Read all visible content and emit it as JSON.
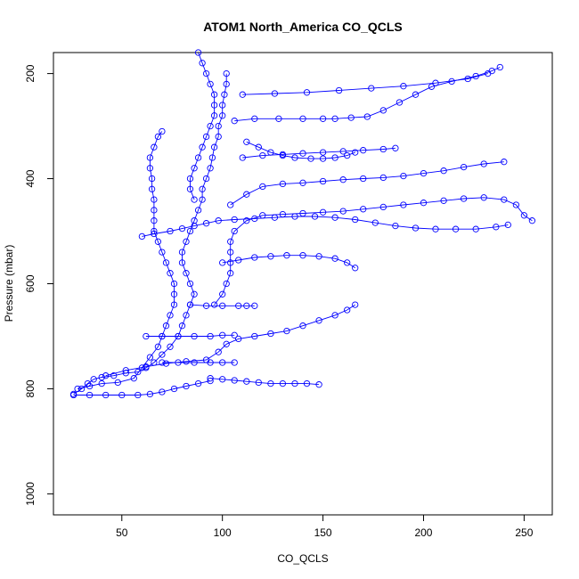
{
  "chart_data": {
    "type": "scatter",
    "title": "ATOM1 North_America CO_QCLS",
    "xlabel": "CO_QCLS",
    "ylabel": "Pressure (mbar)",
    "xlim": [
      16,
      264
    ],
    "ylim": [
      1040,
      160
    ],
    "y_reversed": true,
    "x_ticks": [
      50,
      100,
      150,
      200,
      250
    ],
    "y_ticks": [
      200,
      400,
      600,
      800,
      1000
    ],
    "grid": false,
    "legend": "none",
    "color": "#0000ff",
    "marker": "open-circle",
    "connect_points": true,
    "series": [
      {
        "values": [
          [
            26,
            810
          ],
          [
            30,
            800
          ],
          [
            33,
            790
          ],
          [
            36,
            782
          ],
          [
            40,
            778
          ],
          [
            46,
            775
          ],
          [
            52,
            770
          ],
          [
            58,
            768
          ],
          [
            62,
            760
          ],
          [
            66,
            750
          ],
          [
            70,
            735
          ],
          [
            74,
            720
          ],
          [
            78,
            700
          ],
          [
            80,
            680
          ],
          [
            82,
            660
          ],
          [
            84,
            640
          ],
          [
            86,
            620
          ],
          [
            84,
            600
          ],
          [
            82,
            580
          ],
          [
            80,
            560
          ],
          [
            80,
            540
          ],
          [
            82,
            520
          ],
          [
            84,
            500
          ],
          [
            86,
            480
          ],
          [
            88,
            460
          ],
          [
            90,
            440
          ],
          [
            90,
            420
          ],
          [
            92,
            400
          ],
          [
            94,
            380
          ],
          [
            95,
            360
          ],
          [
            96,
            340
          ],
          [
            98,
            320
          ],
          [
            98,
            300
          ],
          [
            100,
            280
          ],
          [
            100,
            260
          ],
          [
            101,
            240
          ],
          [
            102,
            220
          ],
          [
            102,
            200
          ]
        ]
      },
      {
        "values": [
          [
            28,
            800
          ],
          [
            34,
            795
          ],
          [
            40,
            790
          ],
          [
            48,
            788
          ],
          [
            56,
            780
          ],
          [
            60,
            760
          ],
          [
            64,
            740
          ],
          [
            68,
            720
          ],
          [
            70,
            700
          ],
          [
            72,
            680
          ],
          [
            74,
            660
          ],
          [
            76,
            640
          ],
          [
            76,
            620
          ],
          [
            76,
            600
          ],
          [
            74,
            580
          ],
          [
            72,
            560
          ],
          [
            70,
            540
          ],
          [
            68,
            520
          ],
          [
            66,
            500
          ],
          [
            66,
            480
          ],
          [
            66,
            460
          ],
          [
            66,
            440
          ],
          [
            65,
            420
          ],
          [
            65,
            400
          ],
          [
            64,
            380
          ],
          [
            64,
            360
          ],
          [
            66,
            340
          ],
          [
            68,
            320
          ],
          [
            70,
            310
          ]
        ]
      },
      {
        "values": [
          [
            42,
            775
          ],
          [
            52,
            765
          ],
          [
            62,
            758
          ],
          [
            72,
            752
          ],
          [
            82,
            748
          ],
          [
            92,
            745
          ],
          [
            98,
            730
          ],
          [
            102,
            715
          ],
          [
            108,
            705
          ],
          [
            116,
            700
          ],
          [
            124,
            695
          ],
          [
            132,
            690
          ],
          [
            140,
            680
          ],
          [
            148,
            670
          ],
          [
            156,
            660
          ],
          [
            162,
            650
          ],
          [
            166,
            640
          ]
        ]
      },
      {
        "values": [
          [
            96,
            640
          ],
          [
            100,
            620
          ],
          [
            102,
            600
          ],
          [
            104,
            580
          ],
          [
            104,
            560
          ],
          [
            104,
            540
          ],
          [
            104,
            520
          ],
          [
            106,
            500
          ],
          [
            112,
            480
          ],
          [
            120,
            470
          ],
          [
            130,
            468
          ],
          [
            140,
            466
          ],
          [
            150,
            464
          ],
          [
            160,
            462
          ],
          [
            170,
            458
          ],
          [
            180,
            454
          ],
          [
            190,
            450
          ],
          [
            200,
            446
          ],
          [
            210,
            442
          ],
          [
            220,
            438
          ],
          [
            230,
            436
          ],
          [
            240,
            440
          ],
          [
            246,
            450
          ],
          [
            250,
            470
          ],
          [
            254,
            480
          ]
        ]
      },
      {
        "values": [
          [
            104,
            450
          ],
          [
            112,
            430
          ],
          [
            120,
            415
          ],
          [
            130,
            410
          ],
          [
            140,
            408
          ],
          [
            150,
            405
          ],
          [
            160,
            402
          ],
          [
            170,
            400
          ],
          [
            180,
            398
          ],
          [
            190,
            395
          ],
          [
            200,
            390
          ],
          [
            210,
            385
          ],
          [
            220,
            378
          ],
          [
            230,
            372
          ],
          [
            240,
            368
          ]
        ]
      },
      {
        "values": [
          [
            110,
            360
          ],
          [
            120,
            356
          ],
          [
            130,
            354
          ],
          [
            140,
            352
          ],
          [
            150,
            350
          ],
          [
            160,
            348
          ],
          [
            170,
            346
          ],
          [
            180,
            344
          ],
          [
            186,
            342
          ]
        ]
      },
      {
        "values": [
          [
            106,
            290
          ],
          [
            116,
            286
          ],
          [
            128,
            286
          ],
          [
            140,
            286
          ],
          [
            150,
            286
          ],
          [
            156,
            286
          ],
          [
            164,
            284
          ],
          [
            172,
            282
          ],
          [
            180,
            270
          ],
          [
            188,
            255
          ],
          [
            196,
            240
          ],
          [
            204,
            225
          ],
          [
            214,
            215
          ],
          [
            226,
            205
          ],
          [
            234,
            195
          ],
          [
            238,
            188
          ]
        ]
      },
      {
        "values": [
          [
            110,
            240
          ],
          [
            126,
            238
          ],
          [
            142,
            236
          ],
          [
            158,
            232
          ],
          [
            174,
            228
          ],
          [
            190,
            224
          ],
          [
            206,
            218
          ],
          [
            222,
            210
          ],
          [
            232,
            200
          ]
        ]
      },
      {
        "values": [
          [
            60,
            510
          ],
          [
            66,
            505
          ],
          [
            74,
            500
          ],
          [
            80,
            495
          ],
          [
            86,
            490
          ],
          [
            92,
            485
          ],
          [
            98,
            480
          ],
          [
            106,
            478
          ],
          [
            116,
            476
          ],
          [
            126,
            474
          ],
          [
            136,
            472
          ],
          [
            146,
            472
          ],
          [
            156,
            474
          ],
          [
            166,
            478
          ],
          [
            176,
            484
          ],
          [
            186,
            490
          ],
          [
            196,
            494
          ],
          [
            206,
            496
          ],
          [
            216,
            496
          ],
          [
            226,
            496
          ],
          [
            236,
            492
          ],
          [
            242,
            488
          ]
        ]
      },
      {
        "values": [
          [
            100,
            560
          ],
          [
            108,
            555
          ],
          [
            116,
            550
          ],
          [
            124,
            548
          ],
          [
            132,
            546
          ],
          [
            140,
            546
          ],
          [
            148,
            548
          ],
          [
            156,
            552
          ],
          [
            162,
            560
          ],
          [
            166,
            570
          ]
        ]
      },
      {
        "values": [
          [
            94,
            780
          ],
          [
            100,
            782
          ],
          [
            106,
            784
          ],
          [
            112,
            786
          ],
          [
            118,
            788
          ],
          [
            124,
            790
          ],
          [
            130,
            790
          ],
          [
            136,
            790
          ],
          [
            142,
            790
          ],
          [
            148,
            792
          ]
        ]
      },
      {
        "values": [
          [
            26,
            812
          ],
          [
            34,
            812
          ],
          [
            42,
            812
          ],
          [
            50,
            812
          ],
          [
            58,
            812
          ],
          [
            64,
            810
          ],
          [
            70,
            806
          ],
          [
            76,
            800
          ],
          [
            82,
            795
          ],
          [
            88,
            790
          ],
          [
            94,
            785
          ]
        ]
      },
      {
        "values": [
          [
            88,
            160
          ],
          [
            90,
            180
          ],
          [
            92,
            200
          ],
          [
            94,
            220
          ],
          [
            96,
            240
          ],
          [
            96,
            260
          ],
          [
            96,
            280
          ],
          [
            94,
            300
          ],
          [
            92,
            320
          ],
          [
            90,
            340
          ],
          [
            88,
            360
          ],
          [
            86,
            380
          ],
          [
            84,
            400
          ],
          [
            84,
            420
          ],
          [
            86,
            440
          ]
        ]
      },
      {
        "values": [
          [
            112,
            330
          ],
          [
            118,
            340
          ],
          [
            124,
            350
          ],
          [
            130,
            356
          ],
          [
            136,
            360
          ],
          [
            144,
            362
          ],
          [
            150,
            362
          ],
          [
            156,
            360
          ],
          [
            162,
            356
          ],
          [
            166,
            350
          ]
        ]
      },
      {
        "values": [
          [
            84,
            640
          ],
          [
            92,
            642
          ],
          [
            100,
            642
          ],
          [
            108,
            642
          ],
          [
            112,
            642
          ],
          [
            116,
            642
          ]
        ]
      },
      {
        "values": [
          [
            62,
            700
          ],
          [
            70,
            700
          ],
          [
            78,
            700
          ],
          [
            86,
            700
          ],
          [
            94,
            700
          ],
          [
            100,
            698
          ],
          [
            106,
            698
          ]
        ]
      },
      {
        "values": [
          [
            70,
            750
          ],
          [
            78,
            750
          ],
          [
            86,
            750
          ],
          [
            94,
            750
          ],
          [
            100,
            750
          ],
          [
            106,
            750
          ]
        ]
      }
    ]
  }
}
